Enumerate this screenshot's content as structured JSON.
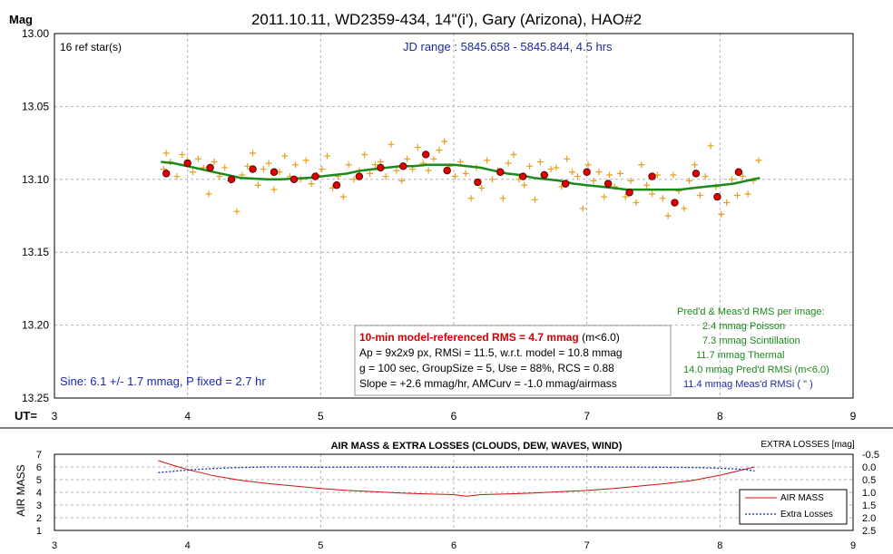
{
  "colors": {
    "background": "#ffffff",
    "frame": "#000000",
    "grid": "#b4b4b4",
    "data_points": "#e6a01e",
    "group_points": "#e00000",
    "model_curve": "#1a8a1a",
    "text_blue": "#1b2aa0",
    "text_red": "#d00000",
    "text_green": "#1a8a1a",
    "airmass": "#d01010",
    "extra_losses": "#1b2aa0"
  },
  "chart_data": [
    {
      "type": "scatter",
      "title": "2011.10.11, WD2359-434, 14\"(i'), Gary (Arizona), HAO#2",
      "ylabel": "Mag",
      "xlabel": "UT=",
      "xlim": [
        3,
        9
      ],
      "ylim": [
        13.0,
        13.25
      ],
      "y_inverted": true,
      "grid": true,
      "x_ticks": [
        "3",
        "4",
        "5",
        "6",
        "7",
        "8",
        "9"
      ],
      "y_ticks": [
        "13.00",
        "13.05",
        "13.10",
        "13.15",
        "13.20",
        "13.25"
      ],
      "annotations": {
        "ref_stars": "16 ref star(s)",
        "jd_range": "JD range : 5845.658 - 5845.844, 4.5 hrs",
        "sine": "Sine: 6.1 +/- 1.7 mmag, P fixed = 2.7 hr"
      },
      "stats_box": {
        "rms_bold": "10-min model-referenced RMS = 4.7 mmag",
        "rms_suffix": " (m<6.0)",
        "line2": "Ap = 9x2x9 px, RMSi = 11.5, w.r.t. model = 10.8 mmag",
        "line3": "g = 100 sec, GroupSize = 5, Use = 88%, RCS = 0.88",
        "line4": "Slope = +2.6 mmag/hr, AMCurv = -1.0 mmag/airmass"
      },
      "rms_panel": {
        "header": "Pred'd & Meas'd RMS per image:",
        "poisson": "2.4 mmag Poisson",
        "scintillation": "7.3 mmag Scintillation",
        "thermal": "11.7 mmag Thermal",
        "predicted": "14.0 mmag Pred'd  RMSi (m<6.0)",
        "measured": "11.4 mmag Meas'd RMSi (      \"      )"
      },
      "series": [
        {
          "kind": "individual",
          "x": [
            3.82,
            3.84,
            3.87,
            3.92,
            3.96,
            4.0,
            4.04,
            4.08,
            4.12,
            4.16,
            4.2,
            4.24,
            4.28,
            4.32,
            4.37,
            4.41,
            4.45,
            4.49,
            4.53,
            4.57,
            4.61,
            4.65,
            4.69,
            4.73,
            4.77,
            4.81,
            4.85,
            4.89,
            4.93,
            4.97,
            5.01,
            5.05,
            5.09,
            5.13,
            5.17,
            5.21,
            5.25,
            5.29,
            5.33,
            5.37,
            5.41,
            5.45,
            5.49,
            5.53,
            5.57,
            5.61,
            5.65,
            5.69,
            5.73,
            5.77,
            5.81,
            5.85,
            5.89,
            5.93,
            5.97,
            6.01,
            6.05,
            6.09,
            6.13,
            6.17,
            6.21,
            6.25,
            6.29,
            6.33,
            6.37,
            6.41,
            6.45,
            6.49,
            6.53,
            6.57,
            6.61,
            6.65,
            6.69,
            6.73,
            6.77,
            6.81,
            6.85,
            6.89,
            6.93,
            6.97,
            7.01,
            7.05,
            7.09,
            7.13,
            7.17,
            7.21,
            7.25,
            7.29,
            7.33,
            7.37,
            7.41,
            7.45,
            7.49,
            7.53,
            7.57,
            7.61,
            7.65,
            7.69,
            7.73,
            7.77,
            7.81,
            7.85,
            7.89,
            7.93,
            7.97,
            8.01,
            8.05,
            8.09,
            8.13,
            8.17,
            8.21,
            8.25,
            8.29
          ],
          "y": [
            13.093,
            13.082,
            13.088,
            13.098,
            13.083,
            13.087,
            13.095,
            13.086,
            13.092,
            13.11,
            13.088,
            13.098,
            13.092,
            13.101,
            13.122,
            13.097,
            13.091,
            13.082,
            13.104,
            13.093,
            13.089,
            13.107,
            13.095,
            13.084,
            13.098,
            13.09,
            13.1,
            13.087,
            13.103,
            13.097,
            13.093,
            13.084,
            13.106,
            13.098,
            13.112,
            13.09,
            13.1,
            13.094,
            13.083,
            13.096,
            13.09,
            13.088,
            13.098,
            13.076,
            13.094,
            13.101,
            13.086,
            13.093,
            13.078,
            13.089,
            13.094,
            13.086,
            13.08,
            13.074,
            13.091,
            13.098,
            13.088,
            13.096,
            13.113,
            13.092,
            13.106,
            13.087,
            13.1,
            13.094,
            13.113,
            13.089,
            13.083,
            13.1,
            13.104,
            13.091,
            13.114,
            13.088,
            13.097,
            13.093,
            13.092,
            13.105,
            13.086,
            13.095,
            13.098,
            13.12,
            13.09,
            13.101,
            13.095,
            13.112,
            13.097,
            13.105,
            13.096,
            13.112,
            13.101,
            13.116,
            13.09,
            13.104,
            13.11,
            13.097,
            13.113,
            13.125,
            13.097,
            13.108,
            13.12,
            13.101,
            13.09,
            13.111,
            13.098,
            13.077,
            13.105,
            13.124,
            13.116,
            13.1,
            13.111,
            13.098,
            13.11,
            13.101,
            13.087
          ],
          "point_marker": "+"
        },
        {
          "kind": "group_averages",
          "x": [
            3.84,
            4.0,
            4.17,
            4.33,
            4.49,
            4.65,
            4.8,
            4.96,
            5.12,
            5.29,
            5.45,
            5.62,
            5.79,
            5.95,
            6.18,
            6.35,
            6.52,
            6.68,
            6.84,
            7.0,
            7.16,
            7.32,
            7.49,
            7.66,
            7.82,
            7.98,
            8.14
          ],
          "y": [
            13.096,
            13.089,
            13.092,
            13.1,
            13.093,
            13.095,
            13.1,
            13.098,
            13.104,
            13.098,
            13.092,
            13.091,
            13.083,
            13.094,
            13.102,
            13.095,
            13.098,
            13.097,
            13.103,
            13.095,
            13.103,
            13.109,
            13.098,
            13.116,
            13.096,
            13.112,
            13.095
          ]
        },
        {
          "kind": "model",
          "x": [
            3.8,
            3.9,
            4.0,
            4.1,
            4.2,
            4.3,
            4.4,
            4.5,
            4.6,
            4.7,
            4.8,
            4.9,
            5.0,
            5.1,
            5.2,
            5.3,
            5.4,
            5.5,
            5.6,
            5.7,
            5.8,
            5.9,
            6.0,
            6.1,
            6.2,
            6.3,
            6.4,
            6.5,
            6.6,
            6.7,
            6.8,
            6.9,
            7.0,
            7.1,
            7.2,
            7.3,
            7.4,
            7.5,
            7.6,
            7.7,
            7.8,
            7.9,
            8.0,
            8.1,
            8.2,
            8.3
          ],
          "y": [
            13.088,
            13.089,
            13.091,
            13.093,
            13.095,
            13.097,
            13.099,
            13.0995,
            13.1,
            13.1,
            13.0995,
            13.099,
            13.098,
            13.097,
            13.096,
            13.094,
            13.093,
            13.092,
            13.091,
            13.091,
            13.09,
            13.09,
            13.09,
            13.091,
            13.092,
            13.094,
            13.096,
            13.097,
            13.099,
            13.1,
            13.101,
            13.103,
            13.104,
            13.105,
            13.106,
            13.107,
            13.107,
            13.107,
            13.107,
            13.107,
            13.106,
            13.105,
            13.104,
            13.103,
            13.101,
            13.099
          ]
        }
      ]
    },
    {
      "type": "line",
      "title": "AIR MASS & EXTRA LOSSES (CLOUDS, DEW, WAVES, WIND)",
      "ylabel": "AIR MASS",
      "y2label": "EXTRA LOSSES [mag]",
      "xlim": [
        3,
        9
      ],
      "ylim": [
        1,
        7
      ],
      "y2lim": [
        2.5,
        -0.5
      ],
      "grid": true,
      "x_ticks": [
        "3",
        "4",
        "5",
        "6",
        "7",
        "8",
        "9"
      ],
      "y_ticks": [
        "1",
        "2",
        "3",
        "4",
        "5",
        "6",
        "7"
      ],
      "y2_ticks": [
        "-0.5",
        "0.0",
        "0.5",
        "1.0",
        "1.5",
        "2.0",
        "2.5"
      ],
      "legend": "bottom-right",
      "series": [
        {
          "name": "AIR MASS",
          "x": [
            3.78,
            3.9,
            4.0,
            4.2,
            4.4,
            4.6,
            4.8,
            5.0,
            5.2,
            5.4,
            5.6,
            5.8,
            6.0,
            6.05,
            6.1,
            6.15,
            6.2,
            6.4,
            6.6,
            6.8,
            7.0,
            7.2,
            7.4,
            7.6,
            7.8,
            8.0,
            8.1,
            8.2,
            8.26
          ],
          "y": [
            6.5,
            6.1,
            5.8,
            5.3,
            4.95,
            4.7,
            4.5,
            4.3,
            4.15,
            4.05,
            3.95,
            3.88,
            3.82,
            3.75,
            3.7,
            3.75,
            3.82,
            3.88,
            3.95,
            4.05,
            4.15,
            4.3,
            4.5,
            4.7,
            4.95,
            5.35,
            5.6,
            5.85,
            6.0
          ]
        },
        {
          "name": "Extra Losses",
          "x": [
            3.78,
            4.0,
            4.2,
            4.4,
            4.6,
            4.8,
            5.0,
            5.5,
            6.0,
            6.5,
            7.0,
            7.5,
            7.8,
            8.0,
            8.2,
            8.26
          ],
          "y": [
            0.22,
            0.12,
            0.06,
            0.02,
            0.0,
            0.0,
            0.01,
            0.0,
            0.01,
            0.0,
            0.0,
            0.01,
            0.02,
            0.05,
            0.1,
            0.16
          ]
        }
      ]
    }
  ]
}
